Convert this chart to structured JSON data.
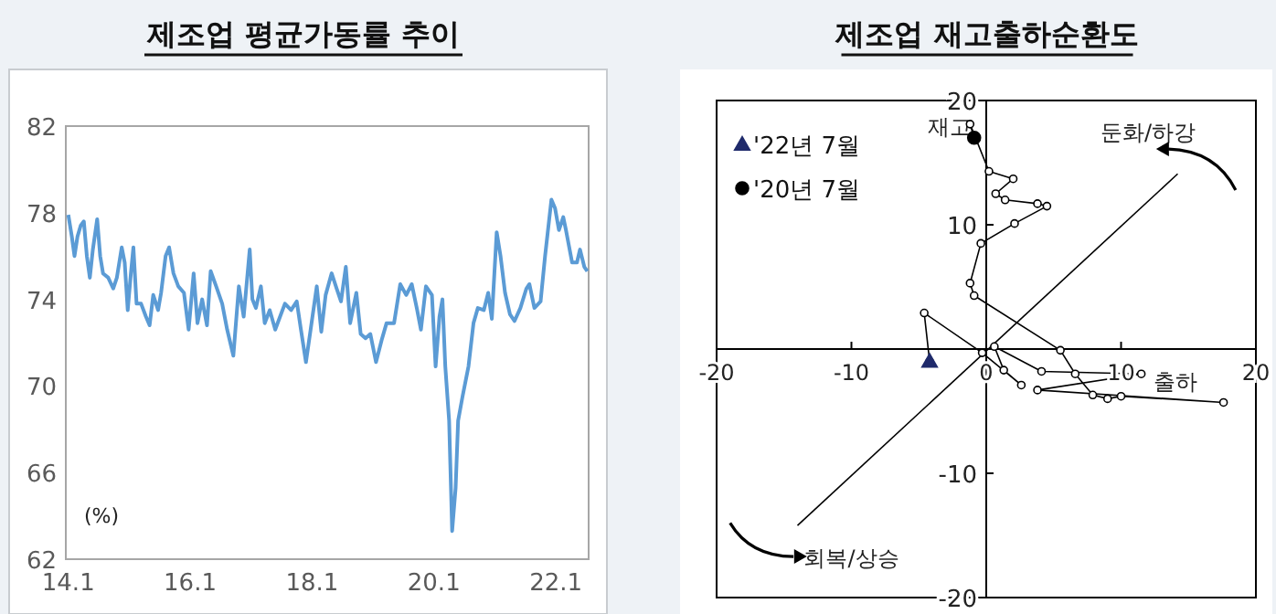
{
  "chart_data": [
    {
      "type": "line",
      "title": "제조업 평균가동률 추이",
      "ylabel": "(%)",
      "xlim": [
        "2013-12-17",
        "2022-07-16"
      ],
      "ylim": [
        62,
        82
      ],
      "yticks": [
        62,
        66,
        70,
        74,
        78,
        82
      ],
      "xticks": [
        {
          "value": "2014-01",
          "label": "14.1"
        },
        {
          "value": "2016-01",
          "label": "16.1"
        },
        {
          "value": "2018-01",
          "label": "18.1"
        },
        {
          "value": "2020-01",
          "label": "20.1"
        },
        {
          "value": "2022-01",
          "label": "22.1"
        }
      ],
      "series": [
        {
          "color": "#5b9bd5",
          "x": [
            "2014-01-01",
            "2014-01-22",
            "2014-02-07",
            "2014-02-25",
            "2014-03-16",
            "2014-04-04",
            "2014-04-22",
            "2014-05-10",
            "2014-05-28",
            "2014-06-23",
            "2014-07-11",
            "2014-07-28",
            "2014-08-28",
            "2014-09-27",
            "2014-10-19",
            "2014-11-17",
            "2014-12-05",
            "2014-12-23",
            "2015-01-11",
            "2015-01-26",
            "2015-02-14",
            "2015-03-13",
            "2015-04-11",
            "2015-05-03",
            "2015-05-25",
            "2015-06-23",
            "2015-07-11",
            "2015-08-07",
            "2015-08-28",
            "2015-09-23",
            "2015-10-22",
            "2015-11-25",
            "2015-12-23",
            "2016-01-22",
            "2016-02-14",
            "2016-03-13",
            "2016-04-11",
            "2016-05-03",
            "2016-06-05",
            "2016-07-11",
            "2016-08-10",
            "2016-09-16",
            "2016-10-19",
            "2016-11-17",
            "2016-12-23",
            "2017-01-08",
            "2017-01-29",
            "2017-02-28",
            "2017-03-23",
            "2017-04-22",
            "2017-05-25",
            "2017-06-23",
            "2017-07-22",
            "2017-08-28",
            "2017-10-01",
            "2017-10-26",
            "2017-11-25",
            "2017-12-23",
            "2018-01-29",
            "2018-02-25",
            "2018-03-23",
            "2018-04-28",
            "2018-05-28",
            "2018-06-23",
            "2018-07-22",
            "2018-08-17",
            "2018-09-23",
            "2018-10-19",
            "2018-11-17",
            "2018-12-16",
            "2019-01-19",
            "2019-02-21",
            "2019-03-23",
            "2019-05-07",
            "2019-06-13",
            "2019-07-19",
            "2019-08-21",
            "2019-09-20",
            "2019-10-15",
            "2019-11-14",
            "2019-12-20",
            "2020-01-11",
            "2020-02-03",
            "2020-02-21",
            "2020-03-09",
            "2020-04-01",
            "2020-04-19",
            "2020-05-10",
            "2020-05-25",
            "2020-06-20",
            "2020-07-26",
            "2020-08-25",
            "2020-09-20",
            "2020-10-26",
            "2020-11-21",
            "2020-12-13",
            "2021-01-11",
            "2021-02-03",
            "2021-03-02",
            "2021-04-01",
            "2021-04-28",
            "2021-06-02",
            "2021-07-08",
            "2021-07-26",
            "2021-08-25",
            "2021-10-01",
            "2021-10-28",
            "2021-12-05",
            "2021-12-27",
            "2022-01-19",
            "2022-02-14",
            "2022-03-02",
            "2022-04-08",
            "2022-05-07",
            "2022-05-25",
            "2022-06-20",
            "2022-07-08"
          ],
          "values": [
            77.9,
            76.9,
            76.0,
            76.9,
            77.4,
            77.6,
            76.0,
            75.0,
            76.3,
            77.7,
            76.0,
            75.2,
            75.0,
            74.5,
            75.0,
            76.4,
            75.7,
            73.5,
            75.2,
            76.4,
            73.8,
            73.8,
            73.2,
            72.8,
            74.2,
            73.5,
            74.3,
            76.0,
            76.4,
            75.2,
            74.6,
            74.3,
            72.6,
            75.2,
            72.9,
            74.0,
            72.8,
            75.3,
            74.6,
            73.8,
            72.6,
            71.4,
            74.6,
            73.2,
            76.3,
            74.0,
            73.6,
            74.6,
            72.9,
            73.5,
            72.6,
            73.2,
            73.8,
            73.5,
            73.9,
            72.6,
            71.1,
            72.6,
            74.6,
            72.5,
            74.2,
            75.2,
            74.5,
            73.9,
            75.5,
            72.9,
            74.3,
            72.4,
            72.2,
            72.4,
            71.1,
            72.1,
            72.9,
            72.9,
            74.7,
            74.2,
            74.7,
            73.6,
            72.6,
            74.6,
            74.2,
            70.9,
            73.2,
            74.0,
            70.9,
            68.4,
            63.3,
            65.3,
            68.4,
            69.5,
            70.9,
            72.9,
            73.6,
            73.5,
            74.3,
            73.1,
            77.1,
            76.0,
            74.3,
            73.3,
            73.0,
            73.6,
            74.5,
            74.7,
            73.6,
            73.9,
            76.0,
            78.6,
            78.2,
            77.2,
            77.8,
            77.2,
            75.7,
            75.7,
            76.3,
            75.5,
            75.3
          ]
        }
      ]
    },
    {
      "type": "line",
      "title": "제조업 재고출하순환도",
      "xlabel": "출하",
      "ylabel": "재고",
      "xlim": [
        -20,
        20
      ],
      "ylim": [
        -20,
        20
      ],
      "xticks": [
        -20,
        -10,
        0,
        10,
        20
      ],
      "yticks": [
        -20,
        -10,
        {
          "value": 0,
          "label": null
        },
        10,
        20
      ],
      "marker": "circle",
      "legend": "top left",
      "annotations": [
        "둔화/하강",
        "회복/상승"
      ],
      "series": [
        {
          "color": "#000000",
          "marker": "none",
          "x": [
            -14.0,
            14.2
          ],
          "values": [
            -14.2,
            14.1
          ]
        },
        {
          "color": "#000000",
          "x": [
            -0.9,
            -1.2,
            0.2,
            2.0,
            0.7,
            1.4,
            3.8,
            4.5,
            2.1,
            -0.4,
            -1.2,
            -0.9,
            5.5,
            6.6,
            7.9,
            9.0,
            10.0,
            17.6,
            3.8,
            11.5,
            4.1,
            0.6,
            1.3,
            2.6,
            -0.3,
            -4.6,
            -4.2
          ],
          "values": [
            17.0,
            18.1,
            14.3,
            13.7,
            12.5,
            12.0,
            11.7,
            11.5,
            10.1,
            8.5,
            5.3,
            4.3,
            -0.1,
            -2.0,
            -3.7,
            -4.0,
            -3.8,
            -4.3,
            -3.3,
            -2.0,
            -1.8,
            0.2,
            -1.7,
            -2.9,
            -0.3,
            2.9,
            -1.0
          ]
        },
        {
          "type": "scatter",
          "name": "'22년 7월",
          "marker": "triangle",
          "color": "#1f2a6b",
          "x": [
            -4.2
          ],
          "values": [
            -1.0
          ]
        },
        {
          "type": "scatter",
          "name": "'20년 7월",
          "marker": "circle",
          "color": "#000000",
          "x": [
            -0.9
          ],
          "values": [
            17.0
          ]
        }
      ]
    }
  ]
}
